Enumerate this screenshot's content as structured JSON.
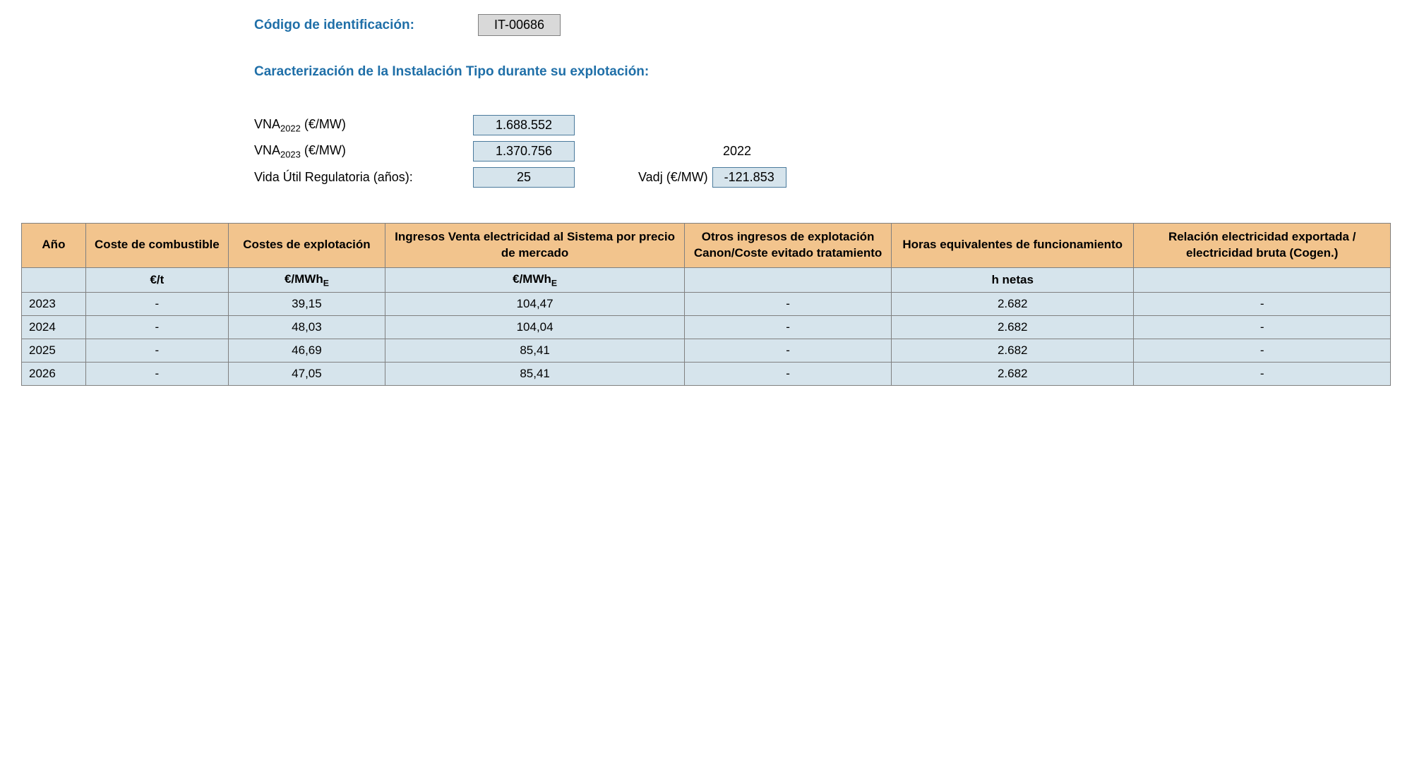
{
  "header": {
    "id_label": "Código de identificación:",
    "id_value": "IT-00686"
  },
  "section_title": "Caracterización de la Instalación Tipo durante su explotación:",
  "params": {
    "vna2022_label_prefix": "VNA",
    "vna2022_sub": "2022",
    "vna2022_label_suffix": " (€/MW)",
    "vna2022_value": "1.688.552",
    "vna2023_label_prefix": "VNA",
    "vna2023_sub": "2023",
    "vna2023_label_suffix": " (€/MW)",
    "vna2023_value": "1.370.756",
    "ref_year": "2022",
    "vida_label": "Vida Útil Regulatoria (años):",
    "vida_value": "25",
    "vadj_label": "Vadj (€/MW)",
    "vadj_value": "-121.853"
  },
  "table": {
    "headers": {
      "ano": "Año",
      "coste_combustible": "Coste de combustible",
      "costes_explotacion": "Costes de explotación",
      "ingresos_venta": "Ingresos Venta electricidad al Sistema por precio de mercado",
      "otros_ingresos": "Otros ingresos de explotación Canon/Coste evitado tratamiento",
      "horas": "Horas equivalentes de funcionamiento",
      "relacion": "Relación electricidad exportada / electricidad bruta (Cogen.)"
    },
    "units": {
      "ano": "",
      "coste_combustible": "€/t",
      "costes_explotacion_prefix": "€/MWh",
      "costes_explotacion_sub": "E",
      "ingresos_venta_prefix": "€/MWh",
      "ingresos_venta_sub": "E",
      "otros_ingresos": "",
      "horas": "h netas",
      "relacion": ""
    },
    "rows": [
      {
        "ano": "2023",
        "coste_combustible": "-",
        "costes_explotacion": "39,15",
        "ingresos_venta": "104,47",
        "otros_ingresos": "-",
        "horas": "2.682",
        "relacion": "-"
      },
      {
        "ano": "2024",
        "coste_combustible": "-",
        "costes_explotacion": "48,03",
        "ingresos_venta": "104,04",
        "otros_ingresos": "-",
        "horas": "2.682",
        "relacion": "-"
      },
      {
        "ano": "2025",
        "coste_combustible": "-",
        "costes_explotacion": "46,69",
        "ingresos_venta": "85,41",
        "otros_ingresos": "-",
        "horas": "2.682",
        "relacion": "-"
      },
      {
        "ano": "2026",
        "coste_combustible": "-",
        "costes_explotacion": "47,05",
        "ingresos_venta": "85,41",
        "otros_ingresos": "-",
        "horas": "2.682",
        "relacion": "-"
      }
    ]
  }
}
